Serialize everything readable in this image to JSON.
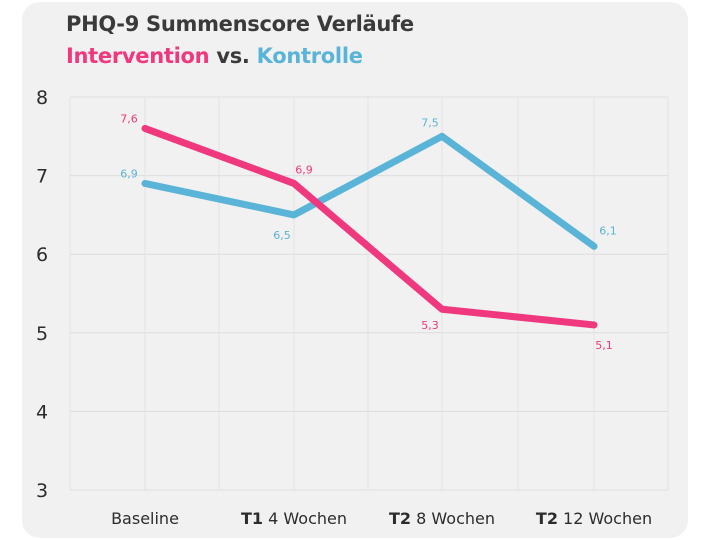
{
  "chart_data": {
    "type": "line",
    "title": "PHQ-9 Summenscore Verläufe",
    "subtitle": {
      "part1": "Intervention",
      "part2": "vs.",
      "part3": "Kontrolle"
    },
    "categories": [
      {
        "bold": "",
        "rest": "Baseline"
      },
      {
        "bold": "T1",
        "rest": " 4 Wochen"
      },
      {
        "bold": "T2",
        "rest": " 8 Wochen"
      },
      {
        "bold": "T2",
        "rest": " 12 Wochen"
      }
    ],
    "yticks": [
      "3",
      "4",
      "5",
      "6",
      "7",
      "8"
    ],
    "ylim": [
      3,
      8
    ],
    "grid": true,
    "series": [
      {
        "name": "Intervention",
        "color": "#f0387f",
        "values": [
          7.6,
          6.9,
          5.3,
          5.1
        ],
        "labels": [
          "7,6",
          "6,9",
          "5,3",
          "5,1"
        ]
      },
      {
        "name": "Kontrolle",
        "color": "#5ab4d8",
        "values": [
          6.9,
          6.5,
          7.5,
          6.1
        ],
        "labels": [
          "6,9",
          "6,5",
          "7,5",
          "6,1"
        ]
      }
    ]
  }
}
